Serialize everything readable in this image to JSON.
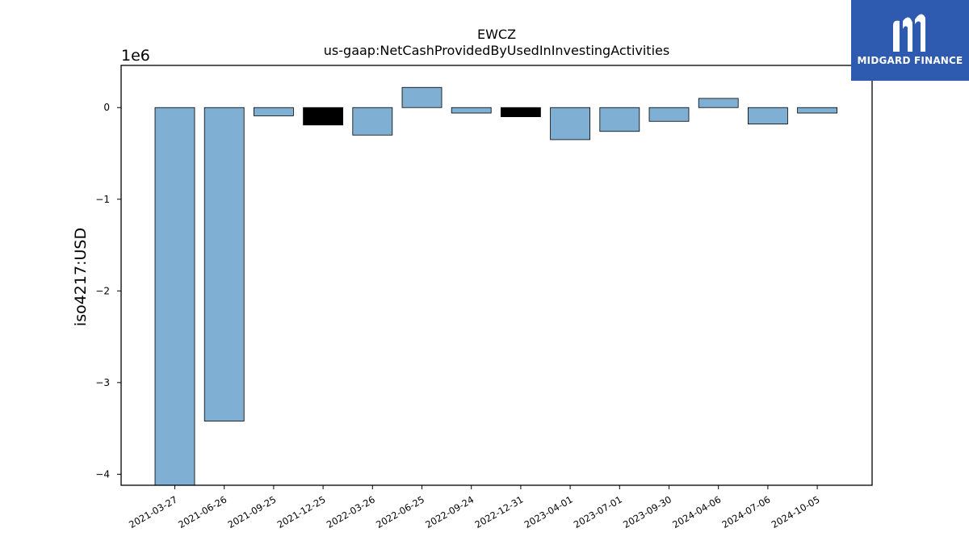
{
  "chart_data": {
    "type": "bar",
    "title": "EWCZ",
    "subtitle": "us-gaap:NetCashProvidedByUsedInInvestingActivities",
    "ylabel": "iso4217:USD",
    "y_scale_label": "1e6",
    "y_scale": 1000000,
    "ylim": [
      -4.12,
      0.46
    ],
    "yticks": [
      0,
      -1,
      -2,
      -3,
      -4
    ],
    "ytick_labels": [
      "0",
      "−1",
      "−2",
      "−3",
      "−4"
    ],
    "grid": false,
    "categories": [
      "2021-03-27",
      "2021-06-26",
      "2021-09-25",
      "2021-12-25",
      "2022-03-26",
      "2022-06-25",
      "2022-09-24",
      "2022-12-31",
      "2023-04-01",
      "2023-07-01",
      "2023-09-30",
      "2024-04-06",
      "2024-07-06",
      "2024-10-05"
    ],
    "values": [
      -4120000,
      -3420000,
      -90000,
      -190000,
      -300000,
      220000,
      -60000,
      -100000,
      -350000,
      -260000,
      -150000,
      100000,
      -180000,
      -60000
    ],
    "bar_colors": [
      "#7fafd3",
      "#7fafd3",
      "#7fafd3",
      "#000000",
      "#7fafd3",
      "#7fafd3",
      "#7fafd3",
      "#000000",
      "#7fafd3",
      "#7fafd3",
      "#7fafd3",
      "#7fafd3",
      "#7fafd3",
      "#7fafd3"
    ]
  },
  "logo": {
    "text": "MIDGARD FINANCE",
    "background": "#2e5bb0"
  }
}
